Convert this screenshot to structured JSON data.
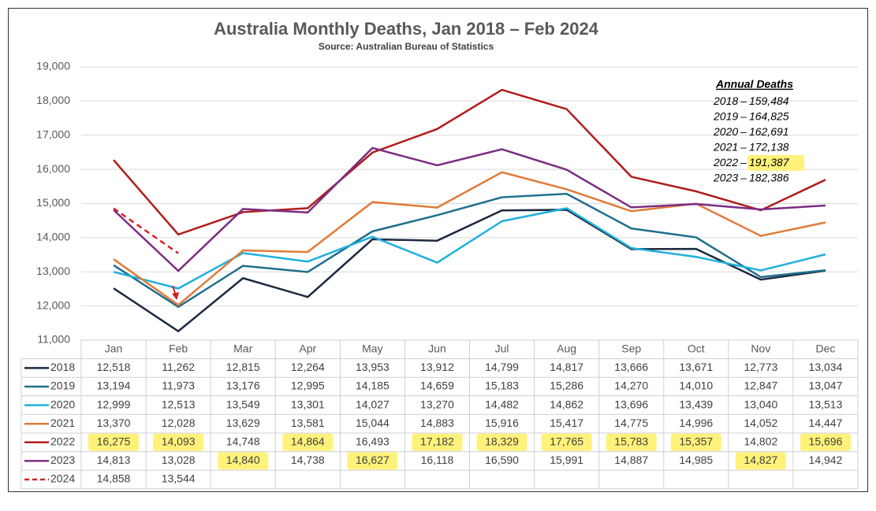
{
  "chart_data": {
    "type": "line",
    "title": "Australia Monthly Deaths, Jan 2018 – Feb 2024",
    "subtitle": "Source: Australian Bureau of Statistics",
    "categories": [
      "Jan",
      "Feb",
      "Mar",
      "Apr",
      "May",
      "Jun",
      "Jul",
      "Aug",
      "Sep",
      "Oct",
      "Nov",
      "Dec"
    ],
    "ylim": [
      11000,
      19000
    ],
    "yticks": [
      {
        "value": 11000,
        "label": "11,000"
      },
      {
        "value": 12000,
        "label": "12,000"
      },
      {
        "value": 13000,
        "label": "13,000"
      },
      {
        "value": 14000,
        "label": "14,000"
      },
      {
        "value": 15000,
        "label": "15,000"
      },
      {
        "value": 16000,
        "label": "16,000"
      },
      {
        "value": 17000,
        "label": "17,000"
      },
      {
        "value": 18000,
        "label": "18,000"
      },
      {
        "value": 19000,
        "label": "19,000"
      }
    ],
    "grid": true,
    "highlight_color": "#fff27a",
    "series": [
      {
        "name": "2018",
        "color": "#1b2a3f",
        "dash": false,
        "values": [
          12518,
          11262,
          12815,
          12264,
          13953,
          13912,
          14799,
          14817,
          13666,
          13671,
          12773,
          13034
        ],
        "value_labels": [
          "12,518",
          "11,262",
          "12,815",
          "12,264",
          "13,953",
          "13,912",
          "14,799",
          "14,817",
          "13,666",
          "13,671",
          "12,773",
          "13,034"
        ],
        "highlight": []
      },
      {
        "name": "2019",
        "color": "#1f6e8c",
        "dash": false,
        "values": [
          13194,
          11973,
          13176,
          12995,
          14185,
          14659,
          15183,
          15286,
          14270,
          14010,
          12847,
          13047
        ],
        "value_labels": [
          "13,194",
          "11,973",
          "13,176",
          "12,995",
          "14,185",
          "14,659",
          "15,183",
          "15,286",
          "14,270",
          "14,010",
          "12,847",
          "13,047"
        ],
        "highlight": []
      },
      {
        "name": "2020",
        "color": "#1fb0dc",
        "dash": false,
        "values": [
          12999,
          12513,
          13549,
          13301,
          14027,
          13270,
          14482,
          14862,
          13696,
          13439,
          13040,
          13513
        ],
        "value_labels": [
          "12,999",
          "12,513",
          "13,549",
          "13,301",
          "14,027",
          "13,270",
          "14,482",
          "14,862",
          "13,696",
          "13,439",
          "13,040",
          "13,513"
        ],
        "highlight": []
      },
      {
        "name": "2021",
        "color": "#e07b39",
        "dash": false,
        "values": [
          13370,
          12028,
          13629,
          13581,
          15044,
          14883,
          15916,
          15417,
          14775,
          14996,
          14052,
          14447
        ],
        "value_labels": [
          "13,370",
          "12,028",
          "13,629",
          "13,581",
          "15,044",
          "14,883",
          "15,916",
          "15,417",
          "14,775",
          "14,996",
          "14,052",
          "14,447"
        ],
        "highlight": []
      },
      {
        "name": "2022",
        "color": "#b01c1c",
        "dash": false,
        "values": [
          16275,
          14093,
          14748,
          14864,
          16493,
          17182,
          18329,
          17765,
          15783,
          15357,
          14802,
          15696
        ],
        "value_labels": [
          "16,275",
          "14,093",
          "14,748",
          "14,864",
          "16,493",
          "17,182",
          "18,329",
          "17,765",
          "15,783",
          "15,357",
          "14,802",
          "15,696"
        ],
        "highlight": [
          0,
          1,
          3,
          5,
          6,
          7,
          8,
          9,
          11
        ]
      },
      {
        "name": "2023",
        "color": "#7b2d82",
        "dash": false,
        "values": [
          14813,
          13028,
          14840,
          14738,
          16627,
          16118,
          16590,
          15991,
          14887,
          14985,
          14827,
          14942
        ],
        "value_labels": [
          "14,813",
          "13,028",
          "14,840",
          "14,738",
          "16,627",
          "16,118",
          "16,590",
          "15,991",
          "14,887",
          "14,985",
          "14,827",
          "14,942"
        ],
        "highlight": [
          2,
          4,
          10
        ]
      },
      {
        "name": "2024",
        "color": "#d42020",
        "dash": true,
        "values": [
          14858,
          13544,
          null,
          null,
          null,
          null,
          null,
          null,
          null,
          null,
          null,
          null
        ],
        "value_labels": [
          "14,858",
          "13,544",
          null,
          null,
          null,
          null,
          null,
          null,
          null,
          null,
          null,
          null
        ],
        "highlight": []
      }
    ],
    "annual": {
      "title": "Annual Deaths",
      "separator": "–",
      "years": [
        "2018",
        "2019",
        "2020",
        "2021",
        "2022",
        "2023"
      ],
      "values": [
        159484,
        164825,
        162691,
        172138,
        191387,
        182386
      ],
      "value_labels": [
        "159,484",
        "164,825",
        "162,691",
        "172,138",
        "191,387",
        "182,386"
      ],
      "highlight": [
        4
      ]
    }
  }
}
